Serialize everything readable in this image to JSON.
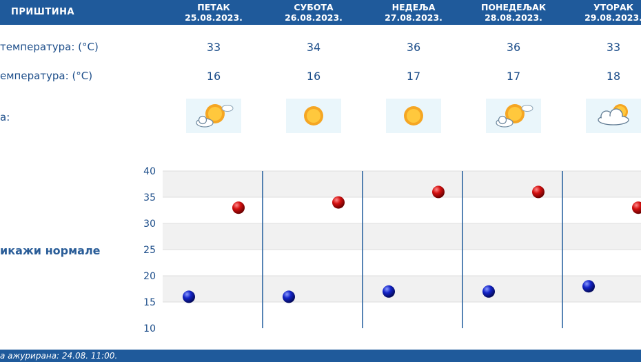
{
  "header": {
    "station": "ПРИШТИНА",
    "days": [
      {
        "name": "ПЕТАК",
        "date": "25.08.2023."
      },
      {
        "name": "СУБОТА",
        "date": "26.08.2023."
      },
      {
        "name": "НЕДЕЉА",
        "date": "27.08.2023."
      },
      {
        "name": "ПОНЕДЕЉАК",
        "date": "28.08.2023."
      },
      {
        "name": "УТОРАК",
        "date": "29.08.2023."
      }
    ]
  },
  "rows": {
    "max_label": "температура: (°C)",
    "min_label": "емпература: (°C)",
    "weather_label": "а:",
    "max": [
      "33",
      "34",
      "36",
      "36",
      "33"
    ],
    "min": [
      "16",
      "16",
      "17",
      "17",
      "18"
    ]
  },
  "weather_icons": [
    "sun-cloud-icon",
    "sun-icon",
    "sun-icon",
    "sun-cloud-icon",
    "cloud-sun-icon"
  ],
  "norms_link": "икажи нормале",
  "chart_data": {
    "type": "scatter",
    "categories": [
      "25.08.2023.",
      "26.08.2023.",
      "27.08.2023.",
      "28.08.2023.",
      "29.08.2023."
    ],
    "series": [
      {
        "values": [
          33,
          34,
          36,
          36,
          33
        ],
        "color": "#cc0000"
      },
      {
        "values": [
          16,
          16,
          17,
          17,
          18
        ],
        "color": "#0a1fae"
      }
    ],
    "yticks": [
      "40",
      "35",
      "30",
      "25",
      "20",
      "15",
      "10"
    ],
    "ylim": [
      10,
      40
    ]
  },
  "footer": {
    "updated": "а ажурирана:  24.08.  11:00."
  }
}
